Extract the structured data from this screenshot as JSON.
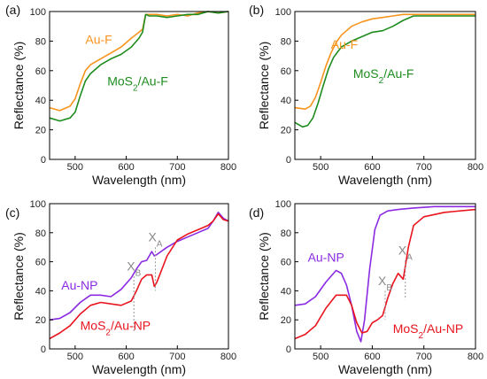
{
  "chart_data": [
    {
      "panel": "(a)",
      "type": "line",
      "xlabel": "Wavelength (nm)",
      "ylabel": "Reflectance (%)",
      "xlim": [
        450,
        800
      ],
      "ylim": [
        0,
        100
      ],
      "xticks": [
        500,
        600,
        700,
        800
      ],
      "yticks": [
        0,
        20,
        40,
        60,
        80,
        100
      ],
      "series": [
        {
          "name": "Au-F",
          "color": "#f7941d",
          "x": [
            450,
            470,
            490,
            500,
            510,
            520,
            530,
            550,
            570,
            590,
            610,
            625,
            632,
            638,
            645,
            660,
            680,
            700,
            720,
            740,
            760,
            780,
            800
          ],
          "y": [
            35,
            33,
            36,
            41,
            51,
            60,
            64,
            68,
            72,
            76,
            82,
            86,
            88,
            98,
            98,
            98,
            97,
            98,
            97,
            99,
            100,
            99,
            100
          ]
        },
        {
          "name": "MoS_2/Au-F",
          "color": "#1e8c1e",
          "x": [
            450,
            470,
            490,
            500,
            510,
            520,
            530,
            550,
            570,
            590,
            610,
            625,
            632,
            638,
            645,
            660,
            680,
            700,
            720,
            740,
            760,
            780,
            800
          ],
          "y": [
            28,
            26,
            28,
            32,
            43,
            53,
            58,
            64,
            68,
            71,
            76,
            82,
            86,
            98,
            97,
            97,
            96,
            97,
            98,
            98,
            100,
            99,
            100
          ]
        }
      ],
      "labels": [
        {
          "series": 0,
          "text": "Au-F",
          "x": 520,
          "y": 78
        },
        {
          "series": 1,
          "text": "MoS_2/Au-F",
          "x": 563,
          "y": 50
        }
      ]
    },
    {
      "panel": "(b)",
      "type": "line",
      "xlabel": "Wavelength (nm)",
      "ylabel": "Reflectance (%)",
      "xlim": [
        450,
        800
      ],
      "ylim": [
        0,
        100
      ],
      "xticks": [
        500,
        600,
        700,
        800
      ],
      "yticks": [
        0,
        20,
        40,
        60,
        80,
        100
      ],
      "series": [
        {
          "name": "Au-F",
          "color": "#f7941d",
          "x": [
            450,
            470,
            480,
            490,
            500,
            510,
            520,
            530,
            540,
            550,
            560,
            580,
            600,
            620,
            640,
            660,
            680,
            700,
            740,
            800
          ],
          "y": [
            35,
            34,
            36,
            42,
            52,
            63,
            72,
            79,
            84,
            87,
            90,
            93,
            95,
            96,
            97,
            98,
            98,
            98,
            98,
            98
          ]
        },
        {
          "name": "MoS_2/Au-F",
          "color": "#1e8c1e",
          "x": [
            450,
            465,
            475,
            485,
            495,
            505,
            515,
            525,
            540,
            560,
            580,
            600,
            620,
            640,
            660,
            680,
            700,
            740,
            800
          ],
          "y": [
            25,
            22,
            23,
            28,
            38,
            50,
            61,
            69,
            76,
            80,
            83,
            86,
            87,
            90,
            94,
            97,
            97,
            97,
            97
          ]
        }
      ],
      "labels": [
        {
          "series": 0,
          "text": "Au-F",
          "x": 520,
          "y": 75
        },
        {
          "series": 1,
          "text": "MoS_2/Au-F",
          "x": 563,
          "y": 55
        }
      ]
    },
    {
      "panel": "(c)",
      "type": "line",
      "xlabel": "Wavelength (nm)",
      "ylabel": "Reflectance (%)",
      "xlim": [
        450,
        800
      ],
      "ylim": [
        0,
        100
      ],
      "xticks": [
        500,
        600,
        700,
        800
      ],
      "yticks": [
        0,
        20,
        40,
        60,
        80,
        100
      ],
      "series": [
        {
          "name": "Au-NP",
          "color": "#8a2be2",
          "x": [
            450,
            470,
            490,
            510,
            530,
            550,
            570,
            590,
            610,
            620,
            630,
            640,
            650,
            655,
            660,
            680,
            700,
            720,
            740,
            760,
            770,
            780,
            790,
            800
          ],
          "y": [
            20,
            21,
            25,
            32,
            37,
            37,
            36,
            41,
            49,
            55,
            60,
            61,
            67,
            64,
            65,
            70,
            74,
            77,
            80,
            83,
            88,
            94,
            90,
            88
          ]
        },
        {
          "name": "MoS_2/Au-NP",
          "color": "#e8141e",
          "x": [
            450,
            470,
            490,
            510,
            530,
            550,
            570,
            590,
            610,
            620,
            630,
            640,
            650,
            655,
            660,
            680,
            700,
            720,
            740,
            760,
            770,
            780,
            790,
            800
          ],
          "y": [
            7,
            11,
            16,
            24,
            30,
            32,
            31,
            30,
            33,
            40,
            48,
            51,
            51,
            43,
            46,
            64,
            75,
            79,
            82,
            85,
            88,
            93,
            89,
            88
          ]
        }
      ],
      "labels": [
        {
          "series": 0,
          "text": "Au-NP",
          "x": 473,
          "y": 41
        },
        {
          "series": 1,
          "text": "MoS_2/Au-NP",
          "x": 510,
          "y": 13
        }
      ],
      "annotations": [
        {
          "text": "X_B",
          "x": 615,
          "y": 54,
          "line_from": 50,
          "line_to": 12
        },
        {
          "text": "X_A",
          "x": 657,
          "y": 74,
          "line_from": 70,
          "line_to": 40
        }
      ]
    },
    {
      "panel": "(d)",
      "type": "line",
      "xlabel": "Wavelength (nm)",
      "ylabel": "Reflectance (%)",
      "xlim": [
        450,
        800
      ],
      "ylim": [
        0,
        100
      ],
      "xticks": [
        500,
        600,
        700,
        800
      ],
      "yticks": [
        0,
        20,
        40,
        60,
        80,
        100
      ],
      "series": [
        {
          "name": "Au-NP",
          "color": "#8a2be2",
          "x": [
            450,
            470,
            490,
            510,
            530,
            540,
            550,
            560,
            570,
            578,
            585,
            595,
            605,
            615,
            630,
            650,
            680,
            720,
            760,
            800
          ],
          "y": [
            30,
            31,
            36,
            46,
            54,
            52,
            44,
            30,
            12,
            5,
            20,
            55,
            82,
            92,
            95,
            96,
            97,
            98,
            98,
            98
          ]
        },
        {
          "name": "MoS_2/Au-NP",
          "color": "#e8141e",
          "x": [
            450,
            470,
            490,
            510,
            530,
            550,
            560,
            570,
            580,
            590,
            600,
            610,
            620,
            630,
            640,
            650,
            660,
            670,
            680,
            700,
            740,
            800
          ],
          "y": [
            7,
            10,
            16,
            28,
            37,
            37,
            30,
            18,
            11,
            12,
            18,
            20,
            23,
            35,
            45,
            52,
            48,
            70,
            85,
            91,
            94,
            96
          ]
        }
      ],
      "labels": [
        {
          "series": 0,
          "text": "Au-NP",
          "x": 475,
          "y": 60
        },
        {
          "series": 1,
          "text": "MoS_2/Au-NP",
          "x": 640,
          "y": 11
        }
      ],
      "annotations": [
        {
          "text": "X_B",
          "x": 625,
          "y": 44,
          "line_from": 40,
          "line_to": 20
        },
        {
          "text": "X_A",
          "x": 664,
          "y": 65,
          "line_from": 61,
          "line_to": 34
        }
      ]
    }
  ]
}
